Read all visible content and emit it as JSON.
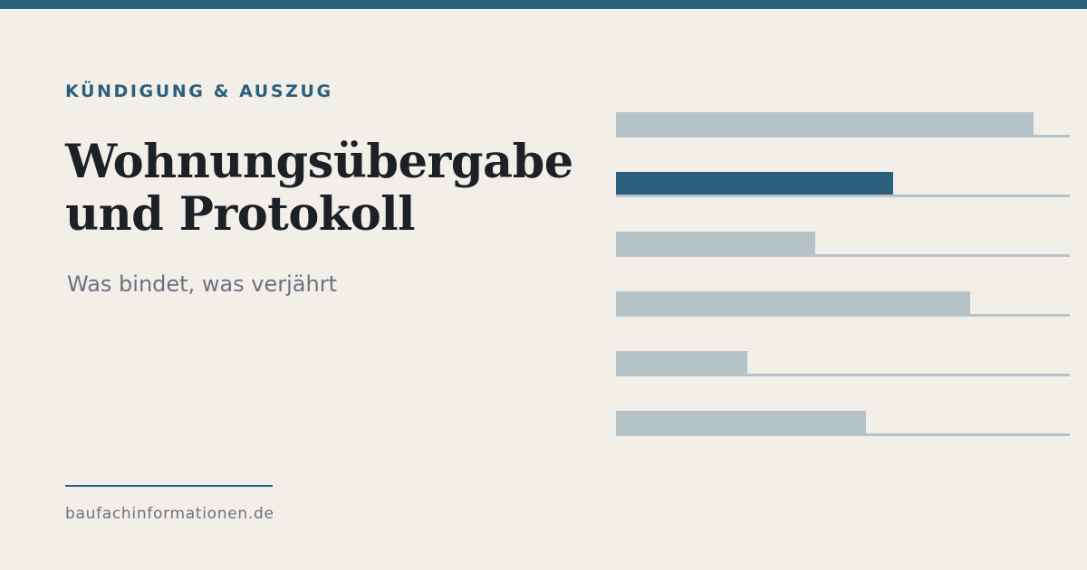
{
  "eyebrow": "KÜNDIGUNG & AUSZUG",
  "title": {
    "line1": "Wohnungsübergabe",
    "line2": "und Protokoll"
  },
  "subtitle": "Was bindet, was verjährt",
  "footer": {
    "site": "baufachinformationen.de"
  },
  "decor_bars": [
    {
      "level": 0.92,
      "highlight": false
    },
    {
      "level": 0.61,
      "highlight": true
    },
    {
      "level": 0.44,
      "highlight": false
    },
    {
      "level": 0.78,
      "highlight": false
    },
    {
      "level": 0.29,
      "highlight": false
    },
    {
      "level": 0.55,
      "highlight": false
    }
  ],
  "colors": {
    "background": "#f2efe9",
    "accent": "#2b5f7c",
    "title": "#1c2127",
    "subtitle": "#6b7280",
    "footer_text": "#6b7280",
    "bar": "#b5c2c8",
    "bar_highlight": "#2b5f7c"
  }
}
